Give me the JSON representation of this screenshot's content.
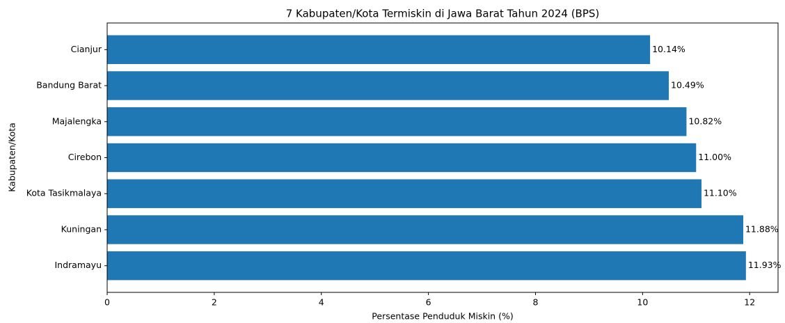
{
  "chart_data": {
    "type": "barh",
    "title": "7 Kabupaten/Kota Termiskin di Jawa Barat Tahun 2024 (BPS)",
    "x_label": "Persentase Penduduk Miskin (%)",
    "y_label": "Kabupaten/Kota",
    "categories": [
      "Cianjur",
      "Bandung Barat",
      "Majalengka",
      "Cirebon",
      "Kota Tasikmalaya",
      "Kuningan",
      "Indramayu"
    ],
    "values": [
      10.14,
      10.49,
      10.82,
      11.0,
      11.1,
      11.88,
      11.93
    ],
    "value_labels": [
      "10.14%",
      "10.49%",
      "10.82%",
      "11.00%",
      "11.10%",
      "11.88%",
      "11.93%"
    ],
    "color": "#1f77b4",
    "xlim": [
      0,
      12.53
    ],
    "xticks": [
      0,
      2,
      4,
      6,
      8,
      10,
      12
    ]
  }
}
